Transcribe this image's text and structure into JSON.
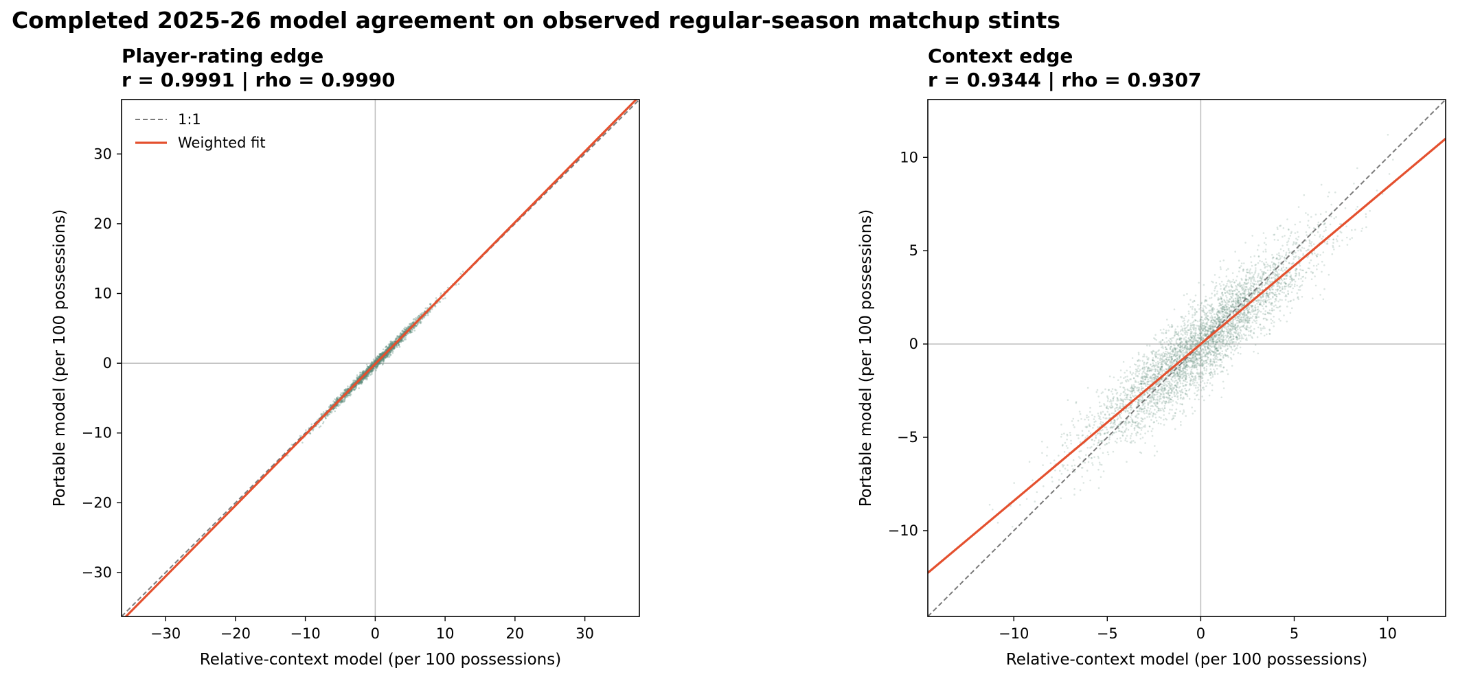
{
  "figure": {
    "title": "Completed 2025-26 model agreement on observed regular-season matchup stints"
  },
  "chart_data": [
    {
      "type": "scatter",
      "title": "Player-rating edge",
      "subtitle": "r = 0.9991 | rho = 0.9990",
      "xlabel": "Relative-context model (per 100 possessions)",
      "ylabel": "Portable model (per 100 possessions)",
      "xlim": [
        -36.3,
        37.8
      ],
      "ylim": [
        -36.3,
        37.8
      ],
      "xticks": [
        -30,
        -20,
        -10,
        0,
        10,
        20,
        30
      ],
      "yticks": [
        -30,
        -20,
        -10,
        0,
        10,
        20,
        30
      ],
      "tick_labels": [
        "−30",
        "−20",
        "−10",
        "0",
        "10",
        "20",
        "30"
      ],
      "grid": false,
      "zero_lines": true,
      "legend_position": "top-left",
      "legend": [
        {
          "label": "1:1",
          "style": "dashed",
          "color": "#7a7a7a"
        },
        {
          "label": "Weighted fit",
          "style": "solid",
          "color": "#e4502e"
        }
      ],
      "series": [
        {
          "kind": "scatter",
          "color": "#5a8a78",
          "points_spread": {
            "x_sd": 4.0,
            "x_range": [
              -20,
              22
            ],
            "noise_sd": 0.35,
            "count": 2200
          }
        },
        {
          "name": "1:1",
          "kind": "line",
          "slope": 1.0,
          "intercept": 0.0,
          "color": "#7a7a7a"
        },
        {
          "name": "Weighted fit",
          "kind": "line",
          "slope": 1.015,
          "intercept": -0.1,
          "color": "#e4502e"
        }
      ]
    },
    {
      "type": "scatter",
      "title": "Context edge",
      "subtitle": "r = 0.9344 | rho = 0.9307",
      "xlabel": "Relative-context model (per 100 possessions)",
      "ylabel": "Portable model (per 100 possessions)",
      "xlim": [
        -14.6,
        13.1
      ],
      "ylim": [
        -14.6,
        13.1
      ],
      "xticks": [
        -10,
        -5,
        0,
        5,
        10
      ],
      "yticks": [
        -10,
        -5,
        0,
        5,
        10
      ],
      "tick_labels": [
        "−10",
        "−5",
        "0",
        "5",
        "10"
      ],
      "grid": false,
      "zero_lines": true,
      "series": [
        {
          "kind": "scatter",
          "color": "#5a8a78",
          "points_spread": {
            "x_sd": 3.0,
            "x_range": [
              -13,
              12
            ],
            "noise_sd": 1.1,
            "count": 4500
          }
        },
        {
          "name": "1:1",
          "kind": "line",
          "slope": 1.0,
          "intercept": 0.0,
          "color": "#7a7a7a"
        },
        {
          "name": "Weighted fit",
          "kind": "line",
          "slope": 0.84,
          "intercept": 0.0,
          "color": "#e4502e"
        }
      ]
    }
  ]
}
